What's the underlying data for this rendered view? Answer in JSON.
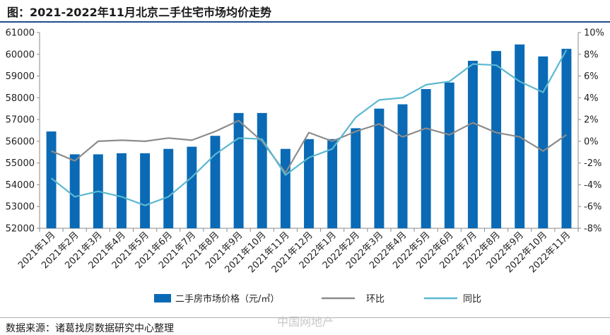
{
  "header": {
    "title": "图：2021-2022年11月北京二手住宅市场均价走势"
  },
  "footer": {
    "source": "数据来源：诸葛找房数据研究中心整理",
    "watermark": "中国网地产"
  },
  "colors": {
    "bar": "#0a6ab5",
    "mom": "#8c8c8c",
    "yoy": "#5bb8d0",
    "title_rule": "#1f4e8c"
  },
  "chart_data": {
    "type": "bar",
    "categories": [
      "2021年1月",
      "2021年2月",
      "2021年3月",
      "2021年4月",
      "2021年5月",
      "2021年6月",
      "2021年7月",
      "2021年8月",
      "2021年9月",
      "2021年10月",
      "2021年11月",
      "2021年12月",
      "2022年1月",
      "2022年2月",
      "2022年3月",
      "2022年4月",
      "2022年5月",
      "2022年6月",
      "2022年7月",
      "2022年8月",
      "2022年9月",
      "2022年10月",
      "2022年11月"
    ],
    "series": [
      {
        "name": "二手房市场价格（元/㎡）",
        "type": "bar",
        "axis": "left",
        "values": [
          56450,
          55400,
          55400,
          55450,
          55450,
          55650,
          55750,
          56250,
          57300,
          57300,
          55650,
          56100,
          56100,
          56600,
          57500,
          57700,
          58400,
          58700,
          59700,
          60150,
          60450,
          59900,
          60250
        ]
      },
      {
        "name": "环比",
        "type": "line",
        "axis": "right",
        "unit": "%",
        "values": [
          -0.9,
          -1.8,
          0.0,
          0.1,
          0.0,
          0.3,
          0.1,
          0.9,
          1.9,
          0.0,
          -2.9,
          0.8,
          0.0,
          0.9,
          1.6,
          0.4,
          1.2,
          0.6,
          1.7,
          0.8,
          0.4,
          -0.9,
          0.6
        ]
      },
      {
        "name": "同比",
        "type": "line",
        "axis": "right",
        "unit": "%",
        "values": [
          -3.4,
          -5.1,
          -4.6,
          -5.1,
          -5.9,
          -5.1,
          -3.3,
          -1.2,
          0.3,
          0.2,
          -3.1,
          -1.5,
          -0.7,
          2.2,
          3.8,
          4.0,
          5.2,
          5.5,
          7.1,
          7.0,
          5.5,
          4.5,
          8.4
        ]
      }
    ],
    "y_left": {
      "min": 52000,
      "max": 61000,
      "step": 1000,
      "ticks": [
        "52000",
        "53000",
        "54000",
        "55000",
        "56000",
        "57000",
        "58000",
        "59000",
        "60000",
        "61000"
      ]
    },
    "y_right": {
      "min": -8,
      "max": 10,
      "step": 2,
      "ticks": [
        "-8%",
        "-6%",
        "-4%",
        "-2%",
        "0%",
        "2%",
        "4%",
        "6%",
        "8%",
        "10%"
      ]
    },
    "legend": {
      "position": "bottom",
      "items": [
        "二手房市场价格（元/㎡）",
        "环比",
        "同比"
      ]
    },
    "grid": false
  }
}
